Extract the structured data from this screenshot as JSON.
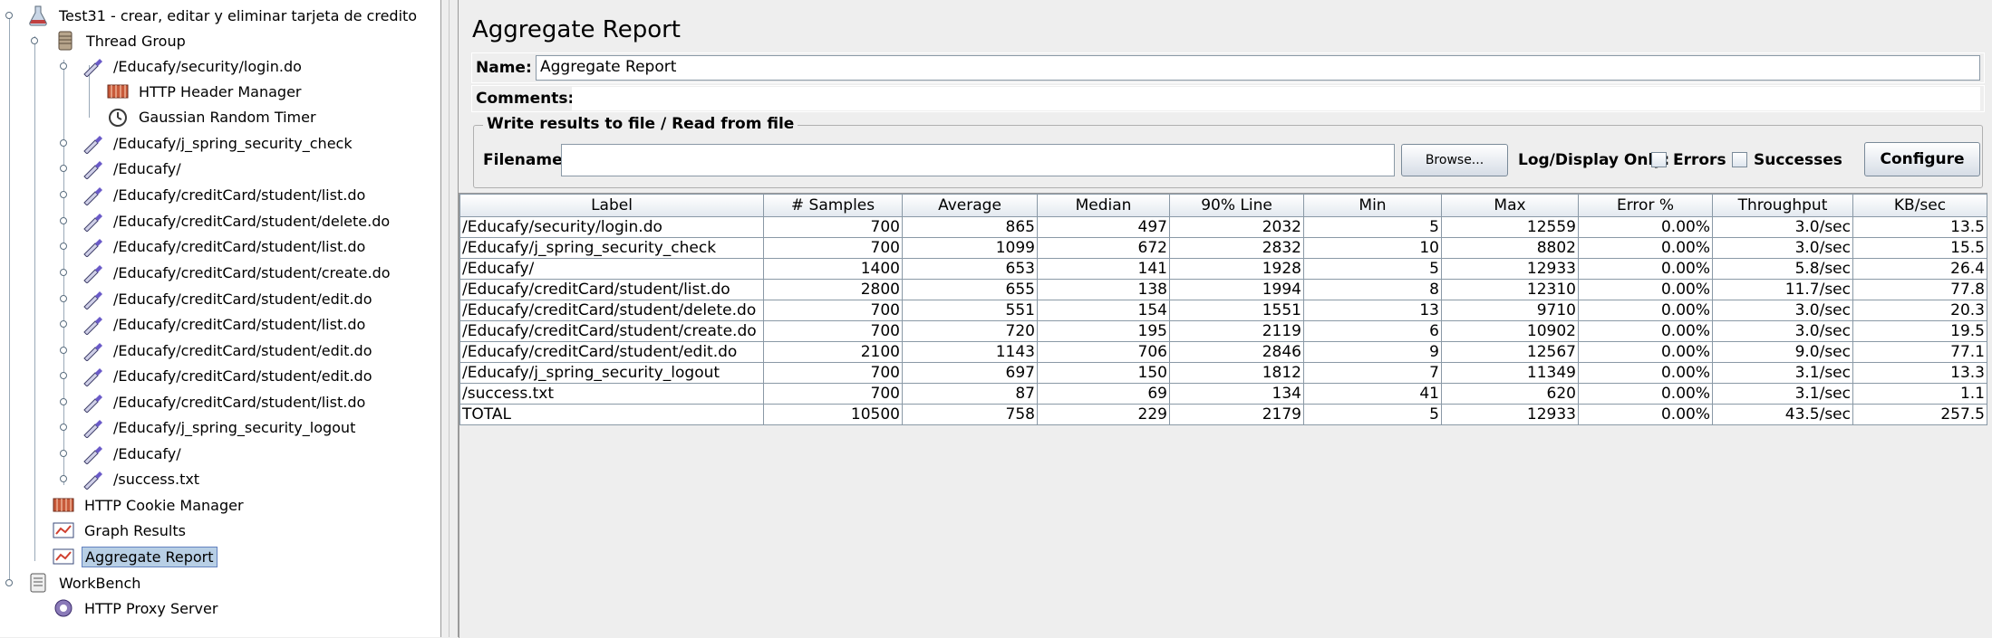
{
  "tree": {
    "items": [
      {
        "label": "Test31 - crear, editar y eliminar tarjeta de credito",
        "icon": "flask-icon"
      },
      {
        "label": "Thread Group",
        "icon": "spool-icon"
      },
      {
        "label": "/Educafy/security/login.do",
        "icon": "pipette-icon"
      },
      {
        "label": "HTTP Header Manager",
        "icon": "manager-icon"
      },
      {
        "label": "Gaussian Random Timer",
        "icon": "timer-icon"
      },
      {
        "label": "/Educafy/j_spring_security_check",
        "icon": "pipette-icon"
      },
      {
        "label": "/Educafy/",
        "icon": "pipette-icon"
      },
      {
        "label": "/Educafy/creditCard/student/list.do",
        "icon": "pipette-icon"
      },
      {
        "label": "/Educafy/creditCard/student/delete.do",
        "icon": "pipette-icon"
      },
      {
        "label": "/Educafy/creditCard/student/list.do",
        "icon": "pipette-icon"
      },
      {
        "label": "/Educafy/creditCard/student/create.do",
        "icon": "pipette-icon"
      },
      {
        "label": "/Educafy/creditCard/student/edit.do",
        "icon": "pipette-icon"
      },
      {
        "label": "/Educafy/creditCard/student/list.do",
        "icon": "pipette-icon"
      },
      {
        "label": "/Educafy/creditCard/student/edit.do",
        "icon": "pipette-icon"
      },
      {
        "label": "/Educafy/creditCard/student/edit.do",
        "icon": "pipette-icon"
      },
      {
        "label": "/Educafy/creditCard/student/list.do",
        "icon": "pipette-icon"
      },
      {
        "label": "/Educafy/j_spring_security_logout",
        "icon": "pipette-icon"
      },
      {
        "label": "/Educafy/",
        "icon": "pipette-icon"
      },
      {
        "label": "/success.txt",
        "icon": "pipette-icon"
      },
      {
        "label": "HTTP Cookie Manager",
        "icon": "manager-icon"
      },
      {
        "label": "Graph Results",
        "icon": "listener-icon"
      },
      {
        "label": "Aggregate Report",
        "icon": "listener-icon",
        "selected": true
      },
      {
        "label": "WorkBench",
        "icon": "workbench-icon"
      },
      {
        "label": "HTTP Proxy Server",
        "icon": "proxy-icon"
      }
    ]
  },
  "panel": {
    "title": "Aggregate Report",
    "name_label": "Name:",
    "name_value": "Aggregate Report",
    "comments_label": "Comments:",
    "file_group_title": "Write results to file / Read from file",
    "filename_label": "Filename",
    "filename_value": "",
    "browse_label": "Browse...",
    "log_display_label": "Log/Display Only:",
    "errors_label": "Errors",
    "successes_label": "Successes",
    "configure_label": "Configure"
  },
  "table": {
    "columns": [
      "Label",
      "# Samples",
      "Average",
      "Median",
      "90% Line",
      "Min",
      "Max",
      "Error %",
      "Throughput",
      "KB/sec"
    ],
    "rows": [
      [
        "/Educafy/security/login.do",
        "700",
        "865",
        "497",
        "2032",
        "5",
        "12559",
        "0.00%",
        "3.0/sec",
        "13.5"
      ],
      [
        "/Educafy/j_spring_security_check",
        "700",
        "1099",
        "672",
        "2832",
        "10",
        "8802",
        "0.00%",
        "3.0/sec",
        "15.5"
      ],
      [
        "/Educafy/",
        "1400",
        "653",
        "141",
        "1928",
        "5",
        "12933",
        "0.00%",
        "5.8/sec",
        "26.4"
      ],
      [
        "/Educafy/creditCard/student/list.do",
        "2800",
        "655",
        "138",
        "1994",
        "8",
        "12310",
        "0.00%",
        "11.7/sec",
        "77.8"
      ],
      [
        "/Educafy/creditCard/student/delete.do",
        "700",
        "551",
        "154",
        "1551",
        "13",
        "9710",
        "0.00%",
        "3.0/sec",
        "20.3"
      ],
      [
        "/Educafy/creditCard/student/create.do",
        "700",
        "720",
        "195",
        "2119",
        "6",
        "10902",
        "0.00%",
        "3.0/sec",
        "19.5"
      ],
      [
        "/Educafy/creditCard/student/edit.do",
        "2100",
        "1143",
        "706",
        "2846",
        "9",
        "12567",
        "0.00%",
        "9.0/sec",
        "77.1"
      ],
      [
        "/Educafy/j_spring_security_logout",
        "700",
        "697",
        "150",
        "1812",
        "7",
        "11349",
        "0.00%",
        "3.1/sec",
        "13.3"
      ],
      [
        "/success.txt",
        "700",
        "87",
        "69",
        "134",
        "41",
        "620",
        "0.00%",
        "3.1/sec",
        "1.1"
      ],
      [
        "TOTAL",
        "10500",
        "758",
        "229",
        "2179",
        "5",
        "12933",
        "0.00%",
        "43.5/sec",
        "257.5"
      ]
    ]
  }
}
